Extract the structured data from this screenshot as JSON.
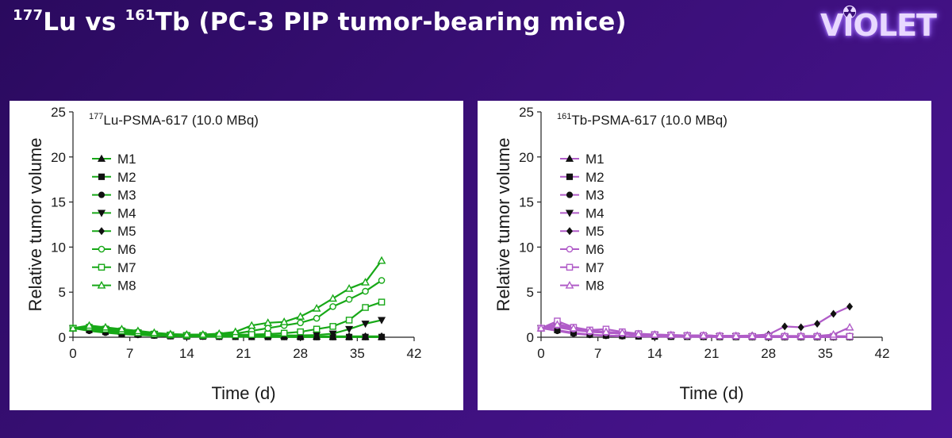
{
  "slide": {
    "title_iso1_mass": "177",
    "title_iso1_symbol": "Lu",
    "title_vs": " vs ",
    "title_iso2_mass": "161",
    "title_iso2_symbol": "Tb",
    "title_rest": " (PC-3 PIP tumor-bearing mice)",
    "logo_text": "VIOLET"
  },
  "chart_data": [
    {
      "type": "line",
      "annotation_mass": "177",
      "annotation_text": "Lu-PSMA-617 (10.0 MBq)",
      "xlabel": "Time (d)",
      "ylabel": "Relative tumor volume",
      "xlim": [
        0,
        42
      ],
      "ylim": [
        0,
        25
      ],
      "xticks": [
        0,
        7,
        14,
        21,
        28,
        35,
        42
      ],
      "yticks": [
        0,
        5,
        10,
        15,
        20,
        25
      ],
      "grid": false,
      "legend_position": "upper-left",
      "color": "#17a817",
      "x": [
        0,
        2,
        4,
        6,
        8,
        10,
        12,
        14,
        16,
        18,
        20,
        22,
        24,
        26,
        28,
        30,
        32,
        34,
        36,
        38
      ],
      "series": [
        {
          "name": "M1",
          "marker": "triangle-up-filled",
          "values": [
            1.0,
            1.1,
            0.8,
            0.6,
            0.4,
            0.3,
            0.2,
            0.15,
            0.15,
            0.2,
            0.3,
            0.25,
            0.2,
            0.15,
            0.1,
            0.08,
            0.05,
            0.05,
            0.04,
            0.03
          ]
        },
        {
          "name": "M2",
          "marker": "square-filled",
          "values": [
            1.0,
            0.8,
            0.6,
            0.4,
            0.3,
            0.2,
            0.12,
            0.1,
            0.08,
            0.06,
            0.05,
            0.04,
            0.03,
            0.03,
            0.02,
            0.02,
            0.02,
            0.02,
            0.02,
            0.02
          ]
        },
        {
          "name": "M3",
          "marker": "circle-filled",
          "values": [
            1.0,
            0.7,
            0.5,
            0.35,
            0.25,
            0.18,
            0.12,
            0.1,
            0.08,
            0.06,
            0.05,
            0.05,
            0.04,
            0.04,
            0.03,
            0.03,
            0.03,
            0.03,
            0.03,
            0.03
          ]
        },
        {
          "name": "M4",
          "marker": "triangle-down-filled",
          "values": [
            1.0,
            1.0,
            0.9,
            0.7,
            0.5,
            0.35,
            0.25,
            0.2,
            0.15,
            0.15,
            0.15,
            0.2,
            0.2,
            0.2,
            0.2,
            0.25,
            0.4,
            0.9,
            1.5,
            1.9
          ]
        },
        {
          "name": "M5",
          "marker": "diamond-filled",
          "values": [
            1.0,
            0.9,
            0.7,
            0.5,
            0.35,
            0.25,
            0.2,
            0.15,
            0.12,
            0.1,
            0.1,
            0.1,
            0.1,
            0.1,
            0.1,
            0.1,
            0.1,
            0.1,
            0.1,
            0.1
          ]
        },
        {
          "name": "M6",
          "marker": "circle-open",
          "values": [
            1.0,
            1.2,
            1.0,
            0.8,
            0.6,
            0.4,
            0.3,
            0.25,
            0.25,
            0.3,
            0.4,
            0.7,
            1.0,
            1.3,
            1.6,
            2.1,
            3.4,
            4.2,
            5.1,
            6.3
          ]
        },
        {
          "name": "M7",
          "marker": "square-open",
          "values": [
            1.0,
            1.1,
            0.9,
            0.7,
            0.5,
            0.35,
            0.25,
            0.2,
            0.2,
            0.2,
            0.25,
            0.3,
            0.35,
            0.45,
            0.6,
            0.9,
            1.2,
            1.9,
            3.3,
            3.9
          ]
        },
        {
          "name": "M8",
          "marker": "triangle-up-open",
          "values": [
            1.0,
            1.3,
            1.1,
            0.9,
            0.7,
            0.5,
            0.35,
            0.3,
            0.3,
            0.4,
            0.6,
            1.3,
            1.6,
            1.7,
            2.3,
            3.2,
            4.3,
            5.4,
            6.1,
            8.5
          ]
        }
      ]
    },
    {
      "type": "line",
      "annotation_mass": "161",
      "annotation_text": "Tb-PSMA-617 (10.0 MBq)",
      "xlabel": "Time (d)",
      "ylabel": "Relative tumor volume",
      "xlim": [
        0,
        42
      ],
      "ylim": [
        0,
        25
      ],
      "xticks": [
        0,
        7,
        14,
        21,
        28,
        35,
        42
      ],
      "yticks": [
        0,
        5,
        10,
        15,
        20,
        25
      ],
      "grid": false,
      "legend_position": "upper-left",
      "color": "#b05cc8",
      "x": [
        0,
        2,
        4,
        6,
        8,
        10,
        12,
        14,
        16,
        18,
        20,
        22,
        24,
        26,
        28,
        30,
        32,
        34,
        36,
        38
      ],
      "series": [
        {
          "name": "M1",
          "marker": "triangle-up-filled",
          "values": [
            1.0,
            1.5,
            1.0,
            0.7,
            0.5,
            0.4,
            0.3,
            0.25,
            0.2,
            0.2,
            0.2,
            0.15,
            0.15,
            0.1,
            0.1,
            0.1,
            0.1,
            0.1,
            0.1,
            0.1
          ]
        },
        {
          "name": "M2",
          "marker": "square-filled",
          "values": [
            1.0,
            0.8,
            0.5,
            0.3,
            0.2,
            0.15,
            0.1,
            0.08,
            0.06,
            0.05,
            0.04,
            0.03,
            0.03,
            0.02,
            0.02,
            0.02,
            0.02,
            0.02,
            0.02,
            0.02
          ]
        },
        {
          "name": "M3",
          "marker": "circle-filled",
          "values": [
            1.0,
            0.7,
            0.4,
            0.25,
            0.15,
            0.1,
            0.08,
            0.06,
            0.05,
            0.04,
            0.03,
            0.03,
            0.03,
            0.02,
            0.02,
            0.02,
            0.02,
            0.02,
            0.02,
            0.02
          ]
        },
        {
          "name": "M4",
          "marker": "triangle-down-filled",
          "values": [
            1.0,
            1.2,
            0.8,
            0.6,
            0.5,
            0.4,
            0.3,
            0.25,
            0.2,
            0.15,
            0.1,
            0.1,
            0.1,
            0.08,
            0.06,
            0.05,
            0.05,
            0.05,
            0.05,
            0.05
          ]
        },
        {
          "name": "M5",
          "marker": "diamond-filled",
          "values": [
            1.0,
            1.1,
            0.8,
            0.6,
            0.5,
            0.4,
            0.3,
            0.25,
            0.2,
            0.2,
            0.2,
            0.15,
            0.15,
            0.2,
            0.3,
            1.2,
            1.1,
            1.5,
            2.6,
            3.4
          ]
        },
        {
          "name": "M6",
          "marker": "circle-open",
          "values": [
            1.0,
            1.3,
            0.9,
            0.6,
            0.5,
            0.4,
            0.3,
            0.25,
            0.2,
            0.15,
            0.15,
            0.1,
            0.1,
            0.1,
            0.1,
            0.1,
            0.1,
            0.1,
            0.1,
            0.1
          ]
        },
        {
          "name": "M7",
          "marker": "square-open",
          "values": [
            1.0,
            1.8,
            1.1,
            0.8,
            0.9,
            0.6,
            0.4,
            0.3,
            0.25,
            0.2,
            0.2,
            0.15,
            0.15,
            0.1,
            0.1,
            0.1,
            0.1,
            0.1,
            0.1,
            0.1
          ]
        },
        {
          "name": "M8",
          "marker": "triangle-up-open",
          "values": [
            1.0,
            1.4,
            1.0,
            0.7,
            0.6,
            0.5,
            0.35,
            0.3,
            0.25,
            0.2,
            0.2,
            0.15,
            0.15,
            0.15,
            0.15,
            0.15,
            0.15,
            0.15,
            0.3,
            1.1
          ]
        }
      ]
    }
  ]
}
